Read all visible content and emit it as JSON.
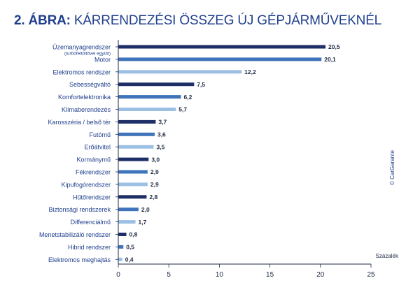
{
  "header": {
    "number": "2. ÁBRA:",
    "text": "KÁRRENDEZÉSI ÖSSZEG ÚJ GÉPJÁRMŰVEKNÉL"
  },
  "credit": "© CarGarante",
  "colors": {
    "dark": "#1d2f66",
    "medium": "#3f74bb",
    "light": "#9cc0e4",
    "axis": "#1f2a44"
  },
  "chart_data": {
    "type": "bar",
    "orientation": "horizontal",
    "categories": [
      "Üzemanyagrendszer",
      "Motor",
      "Elektromos rendszer",
      "Sebességváltó",
      "Komfortelektronika",
      "Klímaberendezés",
      "Karosszéria / belső tér",
      "Futómű",
      "Erőátvitel",
      "Kormánymű",
      "Fékrendszer",
      "Kipufogórendszer",
      "Hűtőrendszer",
      "Biztonsági rendszerek",
      "Differenciálmű",
      "Menetstabilizáló rendszer",
      "Hibrid rendszer",
      "Elektromos meghajtás"
    ],
    "category_note": "(turbófeltöltővel együtt)",
    "values": [
      20.5,
      20.1,
      12.2,
      7.5,
      6.2,
      5.7,
      3.7,
      3.6,
      3.5,
      3.0,
      2.9,
      2.9,
      2.8,
      2.0,
      1.7,
      0.8,
      0.5,
      0.4
    ],
    "value_labels": [
      "20,5",
      "20,1",
      "12,2",
      "7,5",
      "6,2",
      "5,7",
      "3,7",
      "3,6",
      "3,5",
      "3,0",
      "2,9",
      "2,9",
      "2,8",
      "2,0",
      "1,7",
      "0,8",
      "0,5",
      "0,4"
    ],
    "bar_shades": [
      "dark",
      "medium",
      "light",
      "dark",
      "medium",
      "light",
      "dark",
      "medium",
      "light",
      "dark",
      "medium",
      "light",
      "dark",
      "medium",
      "light",
      "dark",
      "medium",
      "light"
    ],
    "xlabel": "Százalék",
    "xlim": [
      0,
      25
    ],
    "xticks": [
      0,
      5,
      10,
      15,
      20,
      25
    ],
    "grid": false
  }
}
